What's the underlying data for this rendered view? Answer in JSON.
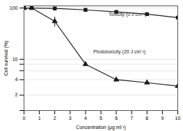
{
  "chart_data": {
    "type": "line",
    "title": "",
    "xlabel": "Concentration (μg ml⁻¹)",
    "ylabel": "Cell survival (%)",
    "log": "y",
    "grid": "y",
    "xlim": [
      0,
      10
    ],
    "ylim": [
      1,
      110
    ],
    "xticks": [
      0,
      1,
      2,
      3,
      4,
      5,
      6,
      7,
      8,
      9,
      10
    ],
    "yticks": [
      {
        "value": 1,
        "label": ""
      },
      2,
      4,
      6,
      8,
      10,
      100
    ],
    "series": [
      {
        "name": "Toxicity (0 J cm⁻²)",
        "color": "#1a1a1a",
        "marker": "square",
        "line_style": "solid",
        "x": [
          0,
          0.5,
          2,
          4,
          6,
          8,
          10
        ],
        "values": [
          100,
          100,
          98,
          92,
          84,
          76,
          65
        ],
        "yerr": [
          0,
          0,
          0,
          2,
          0,
          0,
          0
        ]
      },
      {
        "name": "Phototoxicity (20 J cm⁻²)",
        "color": "#1a1a1a",
        "marker": "triangle",
        "line_style": "solid",
        "x": [
          0,
          0.5,
          2,
          4,
          6,
          8,
          10
        ],
        "values": [
          100,
          100,
          55,
          8,
          4,
          3.5,
          3
        ],
        "yerr": [
          0,
          0,
          12,
          0,
          0,
          0,
          0
        ]
      }
    ],
    "annotations": [
      {
        "text": "Toxicity (0 J cm⁻²)",
        "x": 5.5,
        "y": 75
      },
      {
        "text": "Phototoxicity (20 J cm⁻²)",
        "x": 4.5,
        "y": 14
      }
    ]
  }
}
